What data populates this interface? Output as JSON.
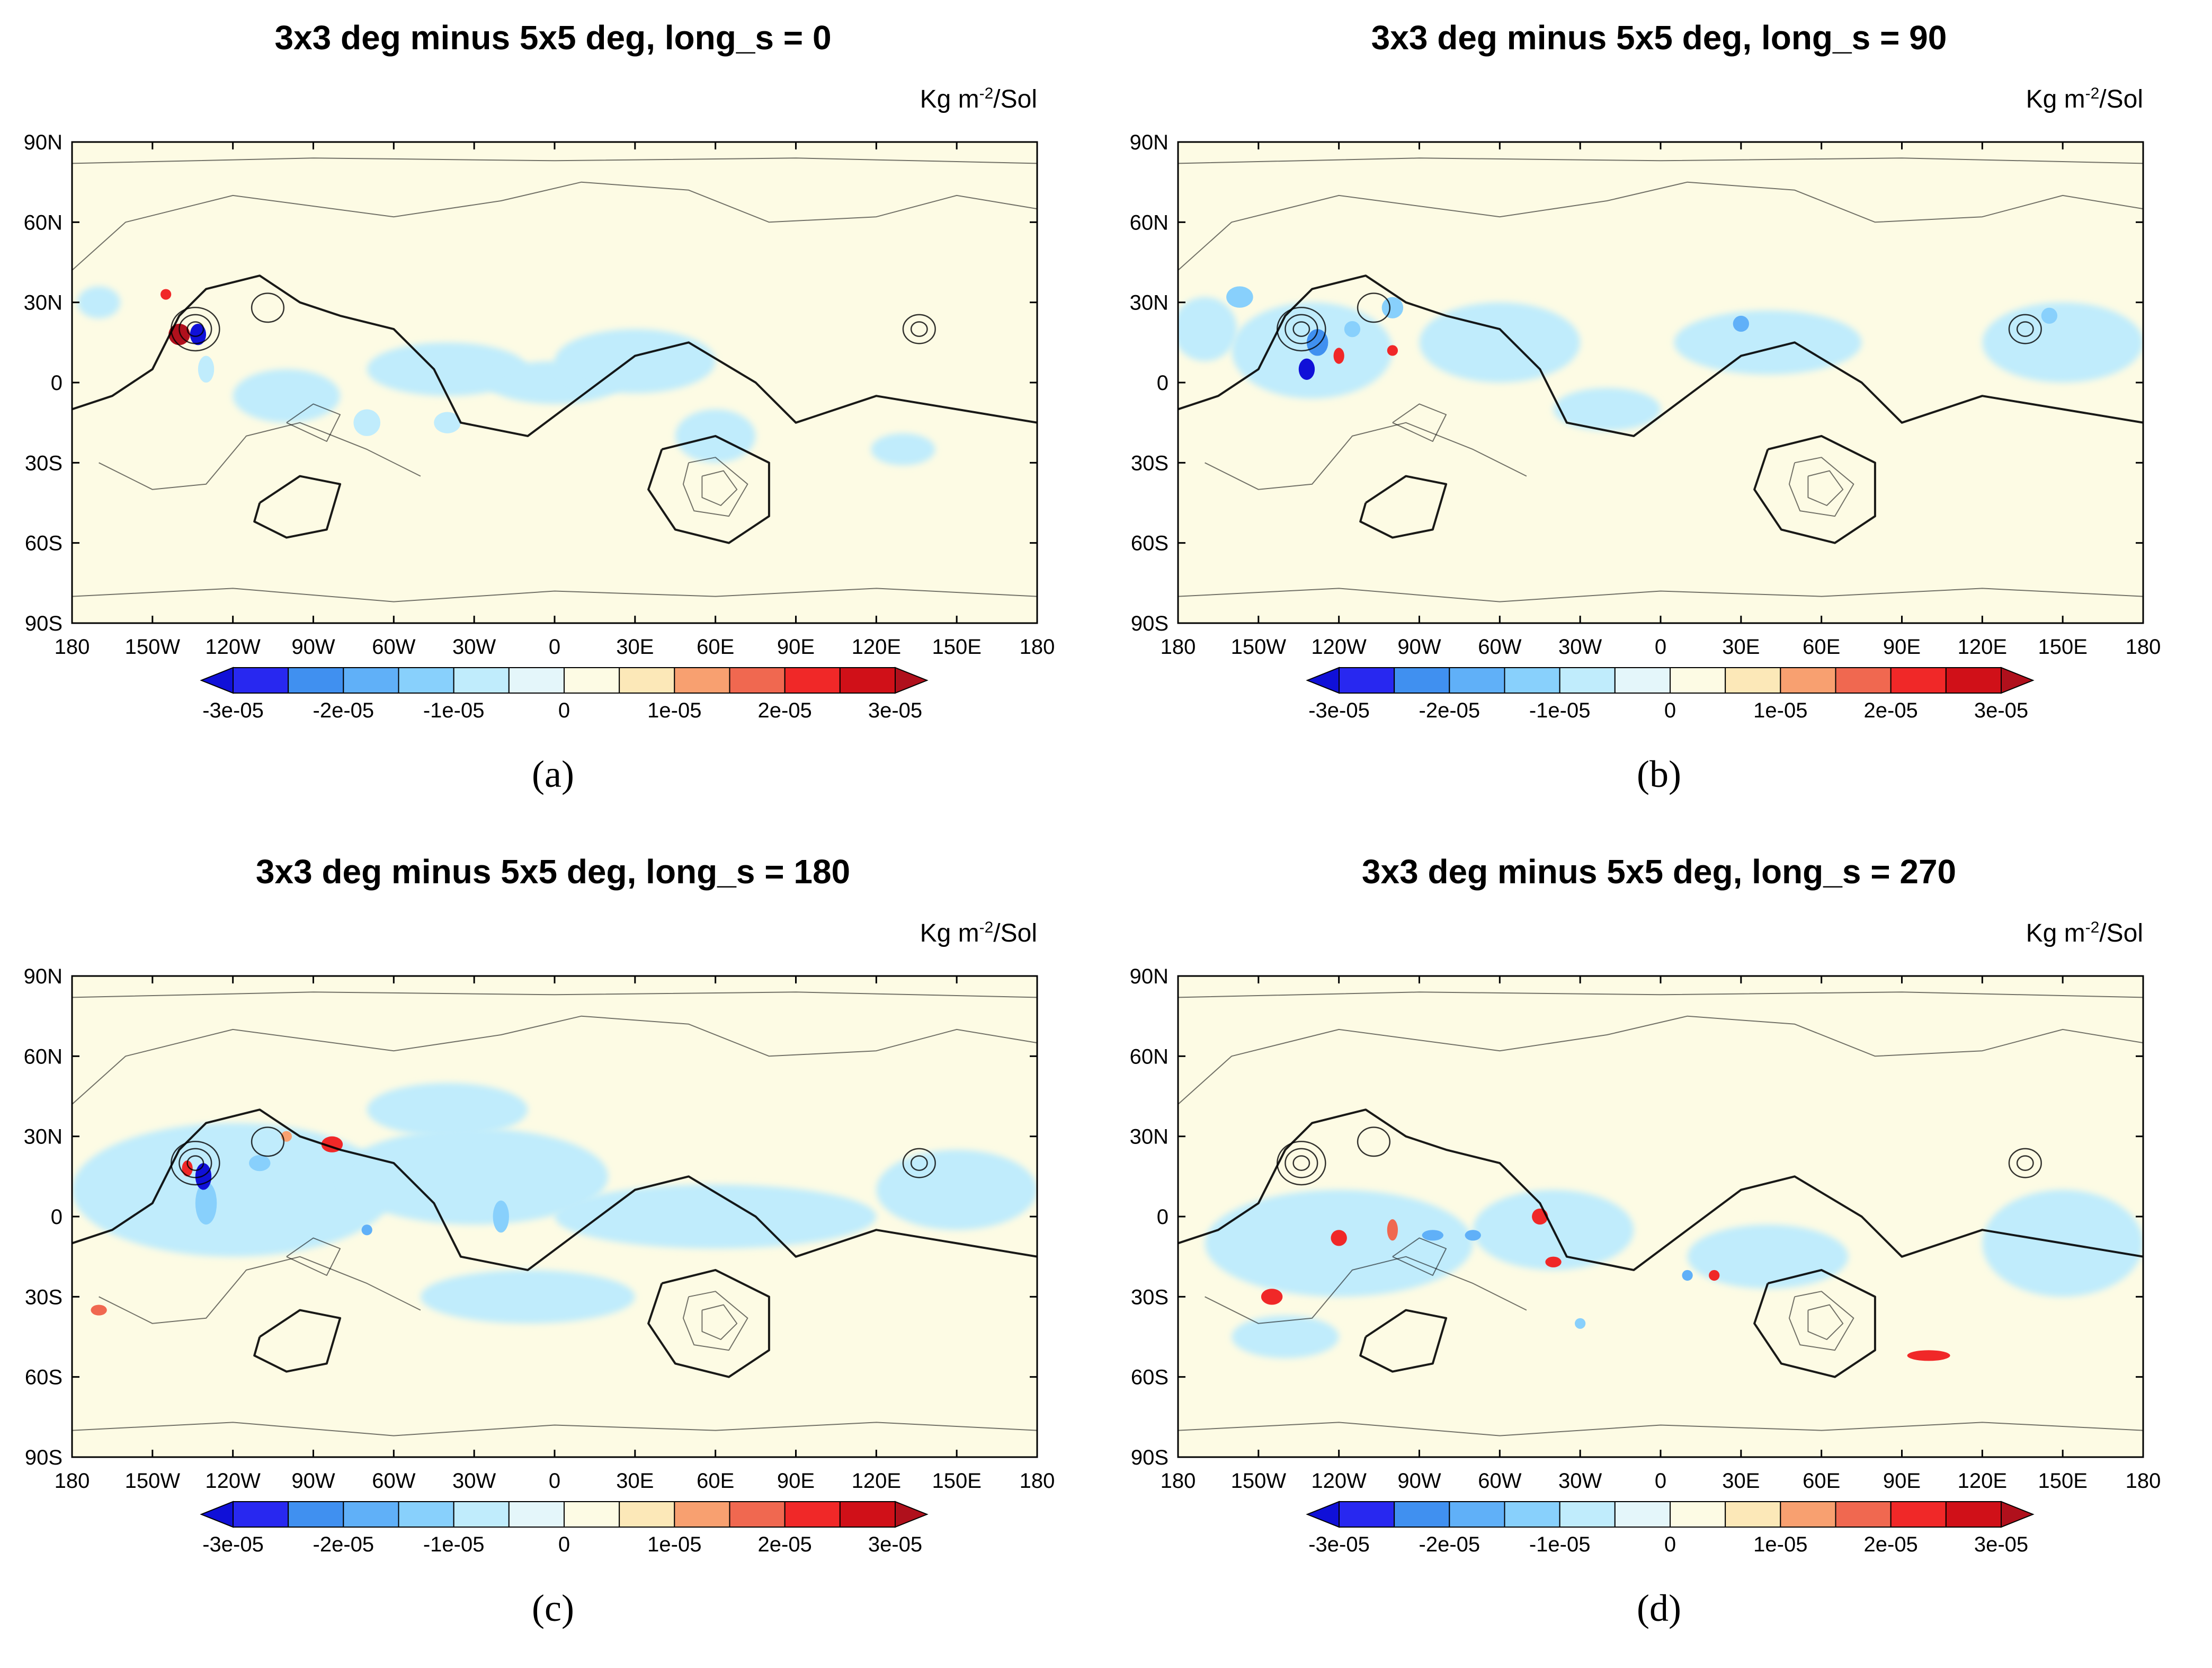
{
  "colors": {
    "levels": [
      "#1010d8",
      "#2828f0",
      "#4090f0",
      "#60b0f8",
      "#88d0fc",
      "#c0ecfc",
      "#e4f6fa",
      "#fdfbe4",
      "#fce8b8",
      "#f8a070",
      "#f06850",
      "#f02828",
      "#d01018",
      "#b0101c"
    ],
    "background": "#fdfbe4",
    "contour": "#000000"
  },
  "chart_data": [
    {
      "type": "heatmap",
      "panel_label": "(a)",
      "title": "3x3 deg minus 5x5 deg, long_s = 0",
      "units_base": "Kg m",
      "units_exp": "-2",
      "units_tail": "/Sol",
      "xlim": [
        -180,
        180
      ],
      "ylim": [
        -90,
        90
      ],
      "x_ticks": [
        -180,
        -150,
        -120,
        -90,
        -60,
        -30,
        0,
        30,
        60,
        90,
        120,
        150,
        180
      ],
      "x_tick_labels": [
        "180",
        "150W",
        "120W",
        "90W",
        "60W",
        "30W",
        "0",
        "30E",
        "60E",
        "90E",
        "120E",
        "150E",
        "180"
      ],
      "y_ticks": [
        90,
        60,
        30,
        0,
        -30,
        -60,
        -90
      ],
      "y_tick_labels": [
        "90N",
        "60N",
        "30N",
        "0",
        "30S",
        "60S",
        "90S"
      ],
      "colorbar_levels": [
        -3e-05,
        -2.5e-05,
        -2e-05,
        -1.5e-05,
        -1e-05,
        -5e-06,
        0,
        5e-06,
        1e-05,
        1.5e-05,
        2e-05,
        2.5e-05,
        3e-05
      ],
      "colorbar_labels": [
        "-3e-05",
        "-2e-05",
        "-1e-05",
        "0",
        "1e-05",
        "2e-05",
        "3e-05"
      ],
      "features": [
        {
          "lon": -140,
          "lat": 18,
          "value": 3e-05,
          "rx": 4,
          "ry": 4
        },
        {
          "lon": -133,
          "lat": 18,
          "value": -3e-05,
          "rx": 3,
          "ry": 4
        },
        {
          "lon": -145,
          "lat": 33,
          "value": 2e-05,
          "rx": 2,
          "ry": 2
        },
        {
          "lon": -130,
          "lat": 5,
          "value": -1e-05,
          "rx": 3,
          "ry": 5
        },
        {
          "lon": -100,
          "lat": -5,
          "value": -7e-06,
          "rx": 20,
          "ry": 10
        },
        {
          "lon": -40,
          "lat": 5,
          "value": -7e-06,
          "rx": 30,
          "ry": 10
        },
        {
          "lon": 0,
          "lat": 0,
          "value": -7e-06,
          "rx": 25,
          "ry": 8
        },
        {
          "lon": 30,
          "lat": 8,
          "value": -7e-06,
          "rx": 30,
          "ry": 12
        },
        {
          "lon": 60,
          "lat": -20,
          "value": -7e-06,
          "rx": 15,
          "ry": 10
        },
        {
          "lon": 130,
          "lat": -25,
          "value": -7e-06,
          "rx": 12,
          "ry": 6
        },
        {
          "lon": -170,
          "lat": 30,
          "value": -7e-06,
          "rx": 8,
          "ry": 6
        },
        {
          "lon": -40,
          "lat": -15,
          "value": -1e-05,
          "rx": 5,
          "ry": 4
        },
        {
          "lon": -70,
          "lat": -15,
          "value": -1e-05,
          "rx": 5,
          "ry": 5
        }
      ]
    },
    {
      "type": "heatmap",
      "panel_label": "(b)",
      "title": "3x3 deg minus 5x5 deg, long_s = 90",
      "units_base": "Kg m",
      "units_exp": "-2",
      "units_tail": "/Sol",
      "xlim": [
        -180,
        180
      ],
      "ylim": [
        -90,
        90
      ],
      "x_ticks": [
        -180,
        -150,
        -120,
        -90,
        -60,
        -30,
        0,
        30,
        60,
        90,
        120,
        150,
        180
      ],
      "x_tick_labels": [
        "180",
        "150W",
        "120W",
        "90W",
        "60W",
        "30W",
        "0",
        "30E",
        "60E",
        "90E",
        "120E",
        "150E",
        "180"
      ],
      "y_ticks": [
        90,
        60,
        30,
        0,
        -30,
        -60,
        -90
      ],
      "y_tick_labels": [
        "90N",
        "60N",
        "30N",
        "0",
        "30S",
        "60S",
        "90S"
      ],
      "colorbar_levels": [
        -3e-05,
        -2.5e-05,
        -2e-05,
        -1.5e-05,
        -1e-05,
        -5e-06,
        0,
        5e-06,
        1e-05,
        1.5e-05,
        2e-05,
        2.5e-05,
        3e-05
      ],
      "colorbar_labels": [
        "-3e-05",
        "-2e-05",
        "-1e-05",
        "0",
        "1e-05",
        "2e-05",
        "3e-05"
      ],
      "features": [
        {
          "lon": -130,
          "lat": 12,
          "value": -7e-06,
          "rx": 30,
          "ry": 18
        },
        {
          "lon": -170,
          "lat": 20,
          "value": -7e-06,
          "rx": 12,
          "ry": 12
        },
        {
          "lon": -60,
          "lat": 15,
          "value": -7e-06,
          "rx": 30,
          "ry": 15
        },
        {
          "lon": 40,
          "lat": 15,
          "value": -7e-06,
          "rx": 35,
          "ry": 12
        },
        {
          "lon": 150,
          "lat": 15,
          "value": -7e-06,
          "rx": 30,
          "ry": 15
        },
        {
          "lon": -20,
          "lat": -10,
          "value": -7e-06,
          "rx": 20,
          "ry": 8
        },
        {
          "lon": -128,
          "lat": 15,
          "value": -2.5e-05,
          "rx": 4,
          "ry": 5
        },
        {
          "lon": -132,
          "lat": 5,
          "value": -3e-05,
          "rx": 3,
          "ry": 4
        },
        {
          "lon": -120,
          "lat": 10,
          "value": 2e-05,
          "rx": 2,
          "ry": 3
        },
        {
          "lon": -100,
          "lat": 12,
          "value": 2e-05,
          "rx": 2,
          "ry": 2
        },
        {
          "lon": -157,
          "lat": 32,
          "value": -1.5e-05,
          "rx": 5,
          "ry": 4
        },
        {
          "lon": -100,
          "lat": 28,
          "value": -1.5e-05,
          "rx": 4,
          "ry": 4
        },
        {
          "lon": 30,
          "lat": 22,
          "value": -2e-05,
          "rx": 3,
          "ry": 3
        },
        {
          "lon": 145,
          "lat": 25,
          "value": -1.5e-05,
          "rx": 3,
          "ry": 3
        },
        {
          "lon": -115,
          "lat": 20,
          "value": -1.5e-05,
          "rx": 3,
          "ry": 3
        }
      ]
    },
    {
      "type": "heatmap",
      "panel_label": "(c)",
      "title": "3x3 deg minus 5x5 deg, long_s = 180",
      "units_base": "Kg m",
      "units_exp": "-2",
      "units_tail": "/Sol",
      "xlim": [
        -180,
        180
      ],
      "ylim": [
        -90,
        90
      ],
      "x_ticks": [
        -180,
        -150,
        -120,
        -90,
        -60,
        -30,
        0,
        30,
        60,
        90,
        120,
        150,
        180
      ],
      "x_tick_labels": [
        "180",
        "150W",
        "120W",
        "90W",
        "60W",
        "30W",
        "0",
        "30E",
        "60E",
        "90E",
        "120E",
        "150E",
        "180"
      ],
      "y_ticks": [
        90,
        60,
        30,
        0,
        -30,
        -60,
        -90
      ],
      "y_tick_labels": [
        "90N",
        "60N",
        "30N",
        "0",
        "30S",
        "60S",
        "90S"
      ],
      "colorbar_levels": [
        -3e-05,
        -2.5e-05,
        -2e-05,
        -1.5e-05,
        -1e-05,
        -5e-06,
        0,
        5e-06,
        1e-05,
        1.5e-05,
        2e-05,
        2.5e-05,
        3e-05
      ],
      "colorbar_labels": [
        "-3e-05",
        "-2e-05",
        "-1e-05",
        "0",
        "1e-05",
        "2e-05",
        "3e-05"
      ],
      "features": [
        {
          "lon": -120,
          "lat": 10,
          "value": -7e-06,
          "rx": 60,
          "ry": 25
        },
        {
          "lon": -30,
          "lat": 15,
          "value": -7e-06,
          "rx": 50,
          "ry": 18
        },
        {
          "lon": 60,
          "lat": 0,
          "value": -7e-06,
          "rx": 60,
          "ry": 12
        },
        {
          "lon": 150,
          "lat": 10,
          "value": -7e-06,
          "rx": 30,
          "ry": 15
        },
        {
          "lon": -40,
          "lat": 40,
          "value": -7e-06,
          "rx": 30,
          "ry": 10
        },
        {
          "lon": -10,
          "lat": -30,
          "value": -7e-06,
          "rx": 40,
          "ry": 10
        },
        {
          "lon": -131,
          "lat": 15,
          "value": -3e-05,
          "rx": 3,
          "ry": 5
        },
        {
          "lon": -130,
          "lat": 5,
          "value": -1.5e-05,
          "rx": 4,
          "ry": 8
        },
        {
          "lon": -137,
          "lat": 18,
          "value": 2e-05,
          "rx": 2,
          "ry": 3
        },
        {
          "lon": -83,
          "lat": 27,
          "value": 2e-05,
          "rx": 4,
          "ry": 3
        },
        {
          "lon": -100,
          "lat": 30,
          "value": 1e-05,
          "rx": 2,
          "ry": 2
        },
        {
          "lon": -110,
          "lat": 20,
          "value": -1.5e-05,
          "rx": 4,
          "ry": 3
        },
        {
          "lon": -20,
          "lat": 0,
          "value": -1.5e-05,
          "rx": 3,
          "ry": 6
        },
        {
          "lon": -70,
          "lat": -5,
          "value": -2e-05,
          "rx": 2,
          "ry": 2
        },
        {
          "lon": -170,
          "lat": -35,
          "value": 1.5e-05,
          "rx": 3,
          "ry": 2
        }
      ]
    },
    {
      "type": "heatmap",
      "panel_label": "(d)",
      "title": "3x3 deg minus 5x5 deg, long_s = 270",
      "units_base": "Kg m",
      "units_exp": "-2",
      "units_tail": "/Sol",
      "xlim": [
        -180,
        180
      ],
      "ylim": [
        -90,
        90
      ],
      "x_ticks": [
        -180,
        -150,
        -120,
        -90,
        -60,
        -30,
        0,
        30,
        60,
        90,
        120,
        150,
        180
      ],
      "x_tick_labels": [
        "180",
        "150W",
        "120W",
        "90W",
        "60W",
        "30W",
        "0",
        "30E",
        "60E",
        "90E",
        "120E",
        "150E",
        "180"
      ],
      "y_ticks": [
        90,
        60,
        30,
        0,
        -30,
        -60,
        -90
      ],
      "y_tick_labels": [
        "90N",
        "60N",
        "30N",
        "0",
        "30S",
        "60S",
        "90S"
      ],
      "colorbar_levels": [
        -3e-05,
        -2.5e-05,
        -2e-05,
        -1.5e-05,
        -1e-05,
        -5e-06,
        0,
        5e-06,
        1e-05,
        1.5e-05,
        2e-05,
        2.5e-05,
        3e-05
      ],
      "colorbar_labels": [
        "-3e-05",
        "-2e-05",
        "-1e-05",
        "0",
        "1e-05",
        "2e-05",
        "3e-05"
      ],
      "features": [
        {
          "lon": -120,
          "lat": -10,
          "value": -7e-06,
          "rx": 50,
          "ry": 20
        },
        {
          "lon": -40,
          "lat": -5,
          "value": -7e-06,
          "rx": 30,
          "ry": 15
        },
        {
          "lon": 40,
          "lat": -15,
          "value": -7e-06,
          "rx": 30,
          "ry": 12
        },
        {
          "lon": 150,
          "lat": -10,
          "value": -7e-06,
          "rx": 30,
          "ry": 20
        },
        {
          "lon": -140,
          "lat": -45,
          "value": -7e-06,
          "rx": 20,
          "ry": 8
        },
        {
          "lon": -120,
          "lat": -8,
          "value": 2e-05,
          "rx": 3,
          "ry": 3
        },
        {
          "lon": -100,
          "lat": -5,
          "value": 1.5e-05,
          "rx": 2,
          "ry": 4
        },
        {
          "lon": -145,
          "lat": -30,
          "value": 2e-05,
          "rx": 4,
          "ry": 3
        },
        {
          "lon": -40,
          "lat": -17,
          "value": 2e-05,
          "rx": 3,
          "ry": 2
        },
        {
          "lon": -45,
          "lat": 0,
          "value": 2e-05,
          "rx": 3,
          "ry": 3
        },
        {
          "lon": -85,
          "lat": -7,
          "value": -2e-05,
          "rx": 4,
          "ry": 2
        },
        {
          "lon": -70,
          "lat": -7,
          "value": -2e-05,
          "rx": 3,
          "ry": 2
        },
        {
          "lon": 100,
          "lat": -52,
          "value": 2e-05,
          "rx": 8,
          "ry": 2
        },
        {
          "lon": 20,
          "lat": -22,
          "value": 2e-05,
          "rx": 2,
          "ry": 2
        },
        {
          "lon": 10,
          "lat": -22,
          "value": -2e-05,
          "rx": 2,
          "ry": 2
        },
        {
          "lon": -30,
          "lat": -40,
          "value": -1.5e-05,
          "rx": 2,
          "ry": 2
        }
      ]
    }
  ]
}
